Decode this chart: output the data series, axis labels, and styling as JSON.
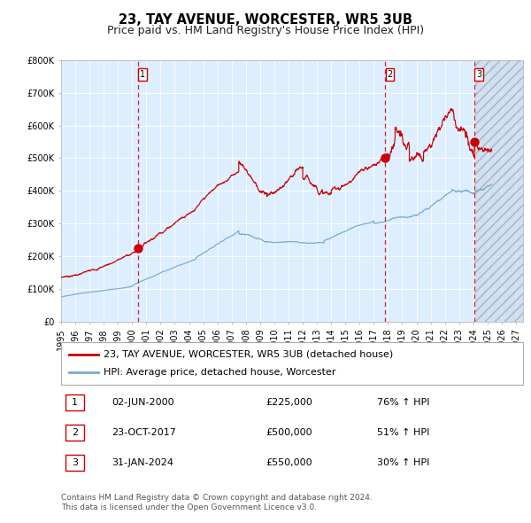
{
  "title": "23, TAY AVENUE, WORCESTER, WR5 3UB",
  "subtitle": "Price paid vs. HM Land Registry's House Price Index (HPI)",
  "ylim": [
    0,
    800000
  ],
  "yticks": [
    0,
    100000,
    200000,
    300000,
    400000,
    500000,
    600000,
    700000,
    800000
  ],
  "ytick_labels": [
    "£0",
    "£100K",
    "£200K",
    "£300K",
    "£400K",
    "£500K",
    "£600K",
    "£700K",
    "£800K"
  ],
  "xlim_start": 1995.0,
  "xlim_end": 2027.5,
  "xtick_years": [
    1995,
    1996,
    1997,
    1998,
    1999,
    2000,
    2001,
    2002,
    2003,
    2004,
    2005,
    2006,
    2007,
    2008,
    2009,
    2010,
    2011,
    2012,
    2013,
    2014,
    2015,
    2016,
    2017,
    2018,
    2019,
    2020,
    2021,
    2022,
    2023,
    2024,
    2025,
    2026,
    2027
  ],
  "sale_dates": [
    2000.42,
    2017.81,
    2024.08
  ],
  "sale_prices": [
    225000,
    500000,
    550000
  ],
  "sale_labels": [
    "1",
    "2",
    "3"
  ],
  "vline_color": "#cc0000",
  "red_line_color": "#cc0000",
  "blue_line_color": "#7aabcc",
  "plot_bg": "#ddeeff",
  "future_start": 2024.08,
  "legend_label_red": "23, TAY AVENUE, WORCESTER, WR5 3UB (detached house)",
  "legend_label_blue": "HPI: Average price, detached house, Worcester",
  "table_rows": [
    {
      "num": "1",
      "date": "02-JUN-2000",
      "price": "£225,000",
      "change": "76% ↑ HPI"
    },
    {
      "num": "2",
      "date": "23-OCT-2017",
      "price": "£500,000",
      "change": "51% ↑ HPI"
    },
    {
      "num": "3",
      "date": "31-JAN-2024",
      "price": "£550,000",
      "change": "30% ↑ HPI"
    }
  ],
  "footnote1": "Contains HM Land Registry data © Crown copyright and database right 2024.",
  "footnote2": "This data is licensed under the Open Government Licence v3.0.",
  "title_fontsize": 10.5,
  "subtitle_fontsize": 9,
  "tick_fontsize": 7,
  "legend_fontsize": 8,
  "table_fontsize": 8,
  "footnote_fontsize": 6.5
}
